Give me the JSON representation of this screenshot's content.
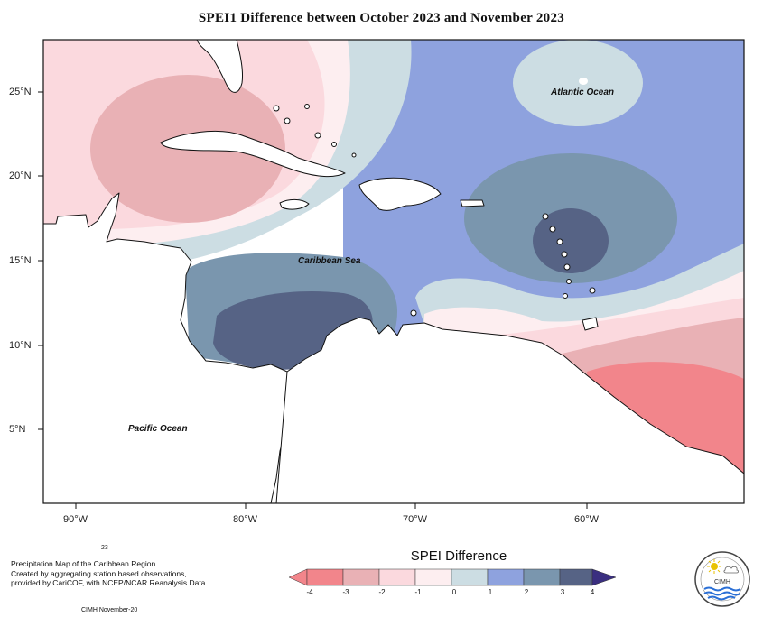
{
  "title": "SPEI1 Difference between October 2023 and November 2023",
  "axes": {
    "lat_labels": [
      "25°N",
      "20°N",
      "15°N",
      "10°N",
      "5°N"
    ],
    "lon_labels": [
      "90°W",
      "80°W",
      "70°W",
      "60°W"
    ]
  },
  "ocean_labels": {
    "atlantic": "Atlantic Ocean",
    "caribbean": "Caribbean Sea",
    "pacific": "Pacific Ocean"
  },
  "footnote": {
    "line1": "Precipitation Map of the Caribbean Region.",
    "line2": "Created by aggregating station based observations,",
    "line3": "provided by CariCOF, with NCEP/NCAR Reanalysis Data.",
    "page": "23",
    "credit": "CIMH November-20"
  },
  "legend": {
    "title": "SPEI Difference",
    "ticks": [
      "-4",
      "-3",
      "-2",
      "-1",
      "0",
      "1",
      "2",
      "3",
      "4"
    ],
    "colors": [
      "#f2858b",
      "#e9b1b5",
      "#fbd9de",
      "#fdeef0",
      "#ccdde3",
      "#8ea2de",
      "#7a96ae",
      "#566385"
    ],
    "arrow_low": "#f2858b",
    "arrow_high": "#3a2f80"
  },
  "logo": {
    "text": "CIMH"
  }
}
